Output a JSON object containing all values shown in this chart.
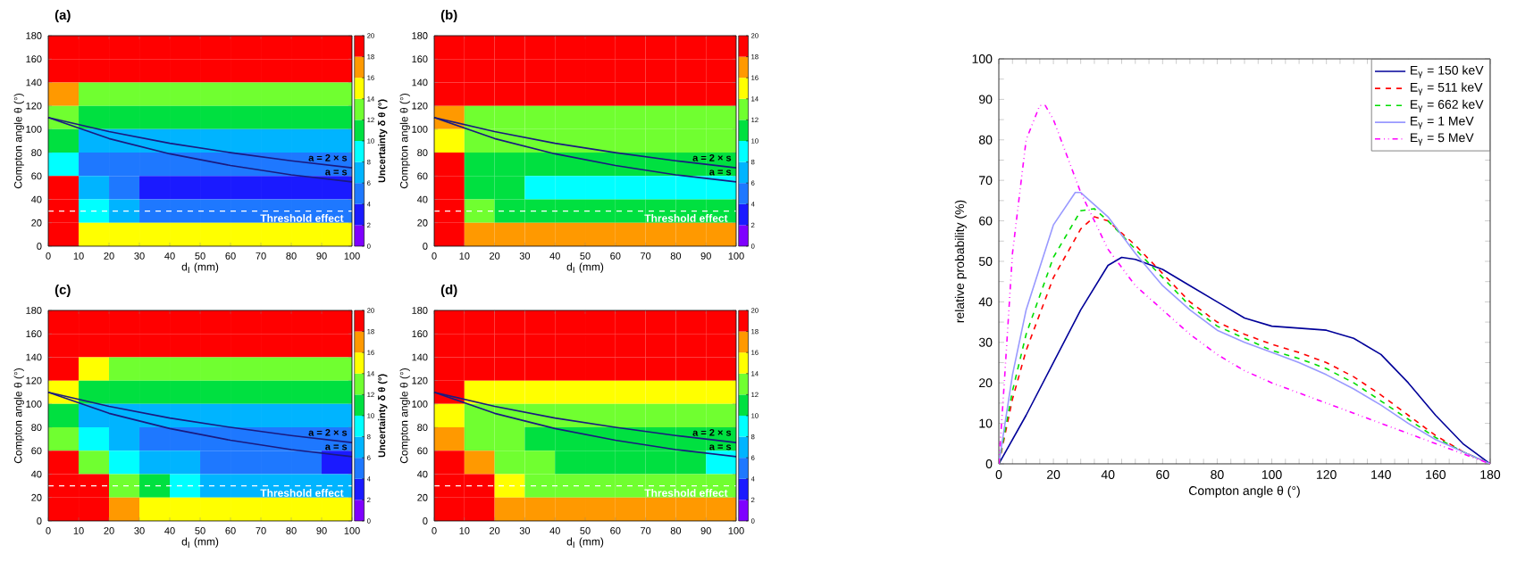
{
  "chart_data": [
    {
      "type": "heatmap",
      "title": "(a)",
      "xlabel": "d$_{I}$ (mm)",
      "ylabel": "Compton angle θ (°)",
      "clabel": "Uncertainty δ θ (°)",
      "x": [
        5,
        15,
        25,
        35,
        45,
        55,
        65,
        75,
        85,
        95
      ],
      "y": [
        170,
        150,
        130,
        110,
        90,
        70,
        50,
        30,
        10
      ],
      "cells": [
        [
          20,
          20,
          20,
          20,
          20,
          20,
          20,
          20,
          20,
          20
        ],
        [
          20,
          19,
          19,
          19,
          19,
          19,
          19,
          19,
          19,
          19
        ],
        [
          17,
          13,
          13,
          13,
          13,
          13,
          13,
          13,
          13,
          13
        ],
        [
          12,
          10,
          10,
          10,
          10,
          10,
          10,
          10,
          10,
          10
        ],
        [
          10,
          7,
          7,
          7,
          7,
          7,
          7,
          7,
          7,
          7
        ],
        [
          8,
          5,
          5,
          5,
          4,
          4,
          4,
          4,
          4,
          4
        ],
        [
          18,
          6,
          5,
          3,
          3,
          3,
          3,
          3,
          3,
          3
        ],
        [
          20,
          8,
          6,
          5,
          5,
          5,
          5,
          5,
          5,
          5
        ],
        [
          20,
          15,
          15,
          15,
          15,
          15,
          15,
          15,
          15,
          15
        ]
      ],
      "xlim": [
        0,
        100
      ],
      "ylim": [
        0,
        180
      ],
      "xticks": [
        0,
        10,
        20,
        30,
        40,
        50,
        60,
        70,
        80,
        90,
        100
      ],
      "yticks": [
        0,
        20,
        40,
        60,
        80,
        100,
        120,
        140,
        160,
        180
      ],
      "clim": [
        0,
        20
      ],
      "cticks": [
        0,
        2,
        4,
        6,
        8,
        10,
        12,
        14,
        16,
        18,
        20
      ],
      "series": [
        {
          "name": "a = 2 × s",
          "type": "line",
          "color": "#1a1a80",
          "x": [
            0,
            20,
            40,
            60,
            80,
            100
          ],
          "values": [
            110,
            98,
            88,
            80,
            73,
            67
          ]
        },
        {
          "name": "a = s",
          "type": "line",
          "color": "#1a1a80",
          "x": [
            0,
            20,
            40,
            60,
            80,
            100
          ],
          "values": [
            110,
            92,
            79,
            69,
            61,
            55
          ]
        }
      ],
      "ref_lines": [
        {
          "axis": "y",
          "value": 30,
          "label": "Threshold effect",
          "color": "#ffffff",
          "line_style": "dashed"
        }
      ]
    },
    {
      "type": "heatmap",
      "title": "(b)",
      "xlabel": "d$_{I}$ (mm)",
      "ylabel": "Compton angle θ (°)",
      "x": [
        5,
        15,
        25,
        35,
        45,
        55,
        65,
        75,
        85,
        95
      ],
      "y": [
        170,
        150,
        130,
        110,
        90,
        70,
        50,
        30,
        10
      ],
      "cells": [
        [
          20,
          20,
          20,
          20,
          20,
          20,
          20,
          20,
          20,
          20
        ],
        [
          20,
          20,
          20,
          20,
          20,
          20,
          20,
          20,
          20,
          20
        ],
        [
          20,
          19,
          19,
          19,
          19,
          19,
          19,
          19,
          19,
          19
        ],
        [
          16,
          13,
          13,
          13,
          13,
          13,
          13,
          13,
          13,
          13
        ],
        [
          14,
          12,
          12,
          12,
          12,
          12,
          12,
          12,
          12,
          12
        ],
        [
          18,
          11,
          11,
          10,
          10,
          10,
          10,
          10,
          10,
          10
        ],
        [
          20,
          11,
          11,
          9,
          9,
          9,
          9,
          9,
          9,
          9
        ],
        [
          20,
          12,
          11,
          11,
          11,
          11,
          11,
          11,
          11,
          11
        ],
        [
          20,
          16,
          16,
          16,
          16,
          16,
          16,
          16,
          16,
          16
        ]
      ],
      "xlim": [
        0,
        100
      ],
      "ylim": [
        0,
        180
      ],
      "xticks": [
        0,
        10,
        20,
        30,
        40,
        50,
        60,
        70,
        80,
        90,
        100
      ],
      "yticks": [
        0,
        20,
        40,
        60,
        80,
        100,
        120,
        140,
        160,
        180
      ],
      "clim": [
        0,
        20
      ],
      "cticks": [
        0,
        2,
        4,
        6,
        8,
        10,
        12,
        14,
        16,
        18,
        20
      ],
      "series": [
        {
          "name": "a = 2 × s",
          "type": "line",
          "color": "#1a1a80",
          "x": [
            0,
            20,
            40,
            60,
            80,
            100
          ],
          "values": [
            110,
            98,
            88,
            80,
            73,
            67
          ]
        },
        {
          "name": "a = s",
          "type": "line",
          "color": "#1a1a80",
          "x": [
            0,
            20,
            40,
            60,
            80,
            100
          ],
          "values": [
            110,
            92,
            79,
            69,
            61,
            55
          ]
        }
      ],
      "ref_lines": [
        {
          "axis": "y",
          "value": 30,
          "label": "Threshold effect",
          "color": "#ffffff",
          "line_style": "dashed"
        }
      ]
    },
    {
      "type": "heatmap",
      "title": "(c)",
      "xlabel": "d$_{I}$ (mm)",
      "ylabel": "Compton angle θ (°)",
      "clabel": "Uncertainty δ θ (°)",
      "x": [
        5,
        15,
        25,
        35,
        45,
        55,
        65,
        75,
        85,
        95
      ],
      "y": [
        170,
        150,
        130,
        110,
        90,
        70,
        50,
        30,
        10
      ],
      "cells": [
        [
          20,
          20,
          20,
          20,
          20,
          20,
          20,
          20,
          20,
          20
        ],
        [
          20,
          19,
          19,
          19,
          19,
          19,
          19,
          19,
          19,
          19
        ],
        [
          19,
          15,
          13,
          13,
          13,
          13,
          13,
          13,
          13,
          13
        ],
        [
          14,
          10,
          10,
          10,
          10,
          10,
          10,
          10,
          10,
          10
        ],
        [
          10,
          7,
          7,
          7,
          7,
          7,
          7,
          7,
          7,
          7
        ],
        [
          12,
          8,
          6,
          5,
          5,
          5,
          5,
          5,
          5,
          4
        ],
        [
          19,
          12,
          8,
          7,
          6,
          5,
          5,
          5,
          5,
          3
        ],
        [
          20,
          18,
          12,
          10,
          8,
          7,
          7,
          7,
          7,
          7
        ],
        [
          20,
          20,
          16,
          15,
          15,
          15,
          15,
          15,
          15,
          15
        ]
      ],
      "xlim": [
        0,
        100
      ],
      "ylim": [
        0,
        180
      ],
      "xticks": [
        0,
        10,
        20,
        30,
        40,
        50,
        60,
        70,
        80,
        90,
        100
      ],
      "yticks": [
        0,
        20,
        40,
        60,
        80,
        100,
        120,
        140,
        160,
        180
      ],
      "clim": [
        0,
        20
      ],
      "cticks": [
        0,
        2,
        4,
        6,
        8,
        10,
        12,
        14,
        16,
        18,
        20
      ],
      "series": [
        {
          "name": "a = 2 × s",
          "type": "line",
          "color": "#1a1a80",
          "x": [
            0,
            20,
            40,
            60,
            80,
            100
          ],
          "values": [
            110,
            98,
            88,
            80,
            73,
            67
          ]
        },
        {
          "name": "a = s",
          "type": "line",
          "color": "#1a1a80",
          "x": [
            0,
            20,
            40,
            60,
            80,
            100
          ],
          "values": [
            110,
            92,
            79,
            69,
            61,
            55
          ]
        }
      ],
      "ref_lines": [
        {
          "axis": "y",
          "value": 30,
          "label": "Threshold effect",
          "color": "#ffffff",
          "line_style": "dashed"
        }
      ]
    },
    {
      "type": "heatmap",
      "title": "(d)",
      "xlabel": "d$_{I}$ (mm)",
      "ylabel": "Compton angle θ (°)",
      "x": [
        5,
        15,
        25,
        35,
        45,
        55,
        65,
        75,
        85,
        95
      ],
      "y": [
        170,
        150,
        130,
        110,
        90,
        70,
        50,
        30,
        10
      ],
      "cells": [
        [
          20,
          20,
          20,
          20,
          20,
          20,
          20,
          20,
          20,
          20
        ],
        [
          20,
          20,
          20,
          20,
          20,
          20,
          20,
          20,
          20,
          20
        ],
        [
          20,
          19,
          19,
          19,
          19,
          19,
          19,
          19,
          19,
          19
        ],
        [
          18,
          15,
          14,
          14,
          14,
          14,
          14,
          14,
          14,
          14
        ],
        [
          14,
          12,
          12,
          12,
          12,
          12,
          12,
          12,
          12,
          12
        ],
        [
          16,
          13,
          12,
          11,
          11,
          11,
          11,
          11,
          11,
          11
        ],
        [
          20,
          16,
          13,
          12,
          10,
          10,
          10,
          10,
          10,
          9
        ],
        [
          20,
          20,
          14,
          12,
          12,
          12,
          12,
          12,
          12,
          12
        ],
        [
          20,
          20,
          17,
          16,
          16,
          16,
          16,
          16,
          16,
          16
        ]
      ],
      "xlim": [
        0,
        100
      ],
      "ylim": [
        0,
        180
      ],
      "xticks": [
        0,
        10,
        20,
        30,
        40,
        50,
        60,
        70,
        80,
        90,
        100
      ],
      "yticks": [
        0,
        20,
        40,
        60,
        80,
        100,
        120,
        140,
        160,
        180
      ],
      "clim": [
        0,
        20
      ],
      "cticks": [
        0,
        2,
        4,
        6,
        8,
        10,
        12,
        14,
        16,
        18,
        20
      ],
      "series": [
        {
          "name": "a = 2 × s",
          "type": "line",
          "color": "#1a1a80",
          "x": [
            0,
            20,
            40,
            60,
            80,
            100
          ],
          "values": [
            110,
            98,
            88,
            80,
            73,
            67
          ]
        },
        {
          "name": "a = s",
          "type": "line",
          "color": "#1a1a80",
          "x": [
            0,
            20,
            40,
            60,
            80,
            100
          ],
          "values": [
            110,
            92,
            79,
            69,
            61,
            55
          ]
        }
      ],
      "ref_lines": [
        {
          "axis": "y",
          "value": 30,
          "label": "Threshold effect",
          "color": "#ffffff",
          "line_style": "dashed"
        }
      ]
    },
    {
      "type": "line",
      "xlabel": "Compton angle θ (°)",
      "ylabel": "relative probability (%)",
      "xlim": [
        0,
        180
      ],
      "ylim": [
        0,
        100
      ],
      "xticks": [
        0,
        20,
        40,
        60,
        80,
        100,
        120,
        140,
        160,
        180
      ],
      "yticks": [
        0,
        10,
        20,
        30,
        40,
        50,
        60,
        70,
        80,
        90,
        100
      ],
      "legend": "top right",
      "series": [
        {
          "name": "E$_{γ}$ = 150 keV",
          "color": "#000099",
          "line_style": "solid",
          "x": [
            0,
            10,
            20,
            30,
            40,
            45,
            50,
            60,
            70,
            80,
            90,
            100,
            110,
            120,
            130,
            140,
            150,
            160,
            170,
            180
          ],
          "values": [
            0,
            12,
            25,
            38,
            49,
            51,
            50.5,
            48,
            44,
            40,
            36,
            34,
            33.5,
            33,
            31,
            27,
            20,
            12,
            5,
            0
          ]
        },
        {
          "name": "E$_{γ}$ = 511 keV",
          "color": "#ff0000",
          "line_style": "dashed",
          "x": [
            0,
            5,
            10,
            20,
            30,
            35,
            40,
            50,
            60,
            70,
            80,
            90,
            100,
            110,
            120,
            130,
            140,
            150,
            160,
            170,
            180
          ],
          "values": [
            0,
            16,
            28,
            46,
            58,
            61,
            60,
            54,
            47,
            40,
            35,
            32,
            29.5,
            27.5,
            25,
            21.5,
            17,
            12,
            7,
            3,
            0
          ]
        },
        {
          "name": "E$_{γ}$ = 662 keV",
          "color": "#00dd00",
          "line_style": "dashed",
          "x": [
            0,
            5,
            10,
            20,
            30,
            35,
            40,
            50,
            60,
            70,
            80,
            90,
            100,
            110,
            120,
            130,
            140,
            150,
            160,
            170,
            180
          ],
          "values": [
            0,
            18,
            32,
            51,
            62.5,
            63,
            60,
            53,
            46,
            39,
            34,
            31,
            28,
            26,
            23.5,
            20,
            15.5,
            11,
            6.5,
            3,
            0
          ]
        },
        {
          "name": "E$_{γ}$ = 1 MeV",
          "color": "#9999ff",
          "line_style": "solid",
          "x": [
            0,
            5,
            10,
            20,
            28,
            30,
            40,
            50,
            60,
            70,
            80,
            90,
            100,
            110,
            120,
            130,
            140,
            150,
            160,
            170,
            180
          ],
          "values": [
            0,
            22,
            38,
            59,
            67,
            67,
            61,
            52,
            44,
            38,
            33,
            30,
            27.5,
            25,
            22,
            18.5,
            14.5,
            10,
            6,
            3,
            0
          ]
        },
        {
          "name": "E$_{γ}$ = 5 MeV",
          "color": "#ff00ff",
          "line_style": "dotted",
          "x": [
            0,
            2,
            5,
            10,
            15,
            17,
            20,
            25,
            30,
            40,
            50,
            60,
            70,
            80,
            90,
            100,
            110,
            120,
            130,
            140,
            150,
            160,
            170,
            180
          ],
          "values": [
            0,
            20,
            52,
            80,
            88.5,
            88.5,
            85,
            76,
            67,
            53,
            44,
            38,
            32,
            27,
            23,
            20,
            17.5,
            15,
            12.5,
            10,
            7.5,
            5,
            2.5,
            0
          ]
        }
      ]
    }
  ]
}
